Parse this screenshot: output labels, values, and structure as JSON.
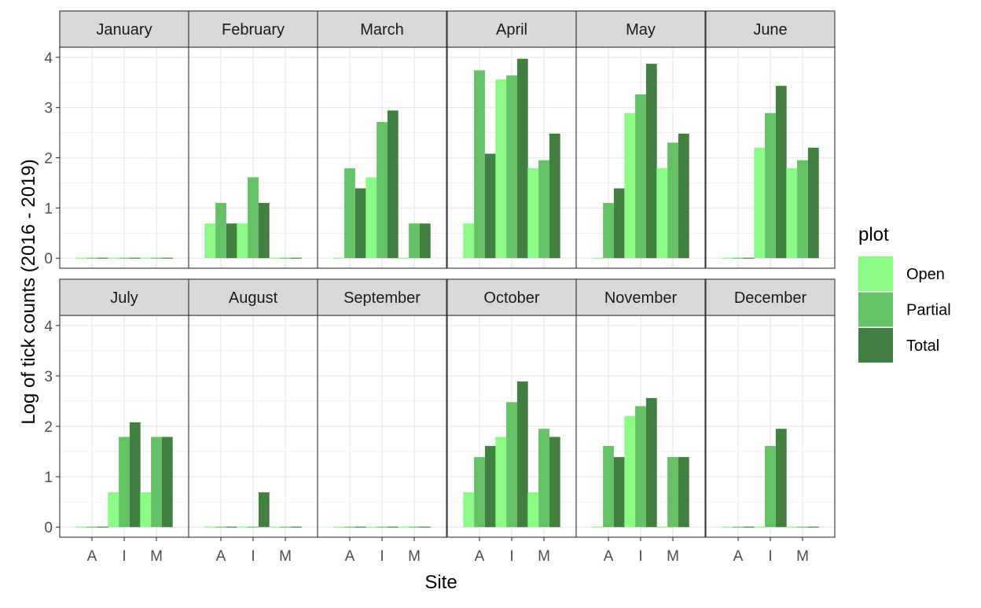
{
  "chart_data": {
    "type": "bar",
    "faceted": true,
    "xlabel": "Site",
    "ylabel": "Log of tick counts (2016 - 2019)",
    "ylim": [
      -0.2,
      4.2
    ],
    "yticks": [
      0,
      1,
      2,
      3,
      4
    ],
    "categories": [
      "A",
      "I",
      "M"
    ],
    "grid": true,
    "legend": {
      "title": "plot",
      "position": "right",
      "entries": [
        {
          "name": "Open",
          "color": "#8CFA87"
        },
        {
          "name": "Partial",
          "color": "#66C266"
        },
        {
          "name": "Total",
          "color": "#428042"
        }
      ]
    },
    "panels": [
      {
        "title": "January",
        "Open": [
          0,
          0,
          0
        ],
        "Partial": [
          0,
          0,
          0
        ],
        "Total": [
          0,
          0,
          0
        ]
      },
      {
        "title": "February",
        "Open": [
          0.69,
          0.69,
          0
        ],
        "Partial": [
          1.1,
          1.61,
          0
        ],
        "Total": [
          0.69,
          1.1,
          0
        ]
      },
      {
        "title": "March",
        "Open": [
          0,
          1.61,
          0
        ],
        "Partial": [
          1.79,
          2.71,
          0.69
        ],
        "Total": [
          1.39,
          2.94,
          0.69
        ]
      },
      {
        "title": "April",
        "Open": [
          0.69,
          3.56,
          1.79
        ],
        "Partial": [
          3.74,
          3.64,
          1.95
        ],
        "Total": [
          2.08,
          3.97,
          2.48
        ]
      },
      {
        "title": "May",
        "Open": [
          0,
          2.89,
          1.79
        ],
        "Partial": [
          1.1,
          3.26,
          2.3
        ],
        "Total": [
          1.39,
          3.87,
          2.48
        ]
      },
      {
        "title": "June",
        "Open": [
          0,
          2.2,
          1.79
        ],
        "Partial": [
          0,
          2.89,
          1.95
        ],
        "Total": [
          0,
          3.43,
          2.2
        ]
      },
      {
        "title": "July",
        "Open": [
          0,
          0.69,
          0.69
        ],
        "Partial": [
          0,
          1.79,
          1.79
        ],
        "Total": [
          0,
          2.08,
          1.79
        ]
      },
      {
        "title": "August",
        "Open": [
          0,
          0,
          0
        ],
        "Partial": [
          0,
          0,
          0
        ],
        "Total": [
          0,
          0.69,
          0
        ]
      },
      {
        "title": "September",
        "Open": [
          0,
          0,
          0
        ],
        "Partial": [
          0,
          0,
          0
        ],
        "Total": [
          0,
          0,
          0
        ]
      },
      {
        "title": "October",
        "Open": [
          0.69,
          1.79,
          0.69
        ],
        "Partial": [
          1.39,
          2.48,
          1.95
        ],
        "Total": [
          1.61,
          2.89,
          1.79
        ]
      },
      {
        "title": "November",
        "Open": [
          0,
          2.2,
          0
        ],
        "Partial": [
          1.61,
          2.4,
          1.39
        ],
        "Total": [
          1.39,
          2.56,
          1.39
        ]
      },
      {
        "title": "December",
        "Open": [
          0,
          0,
          0
        ],
        "Partial": [
          0,
          1.61,
          0
        ],
        "Total": [
          0,
          1.95,
          0
        ]
      }
    ]
  }
}
